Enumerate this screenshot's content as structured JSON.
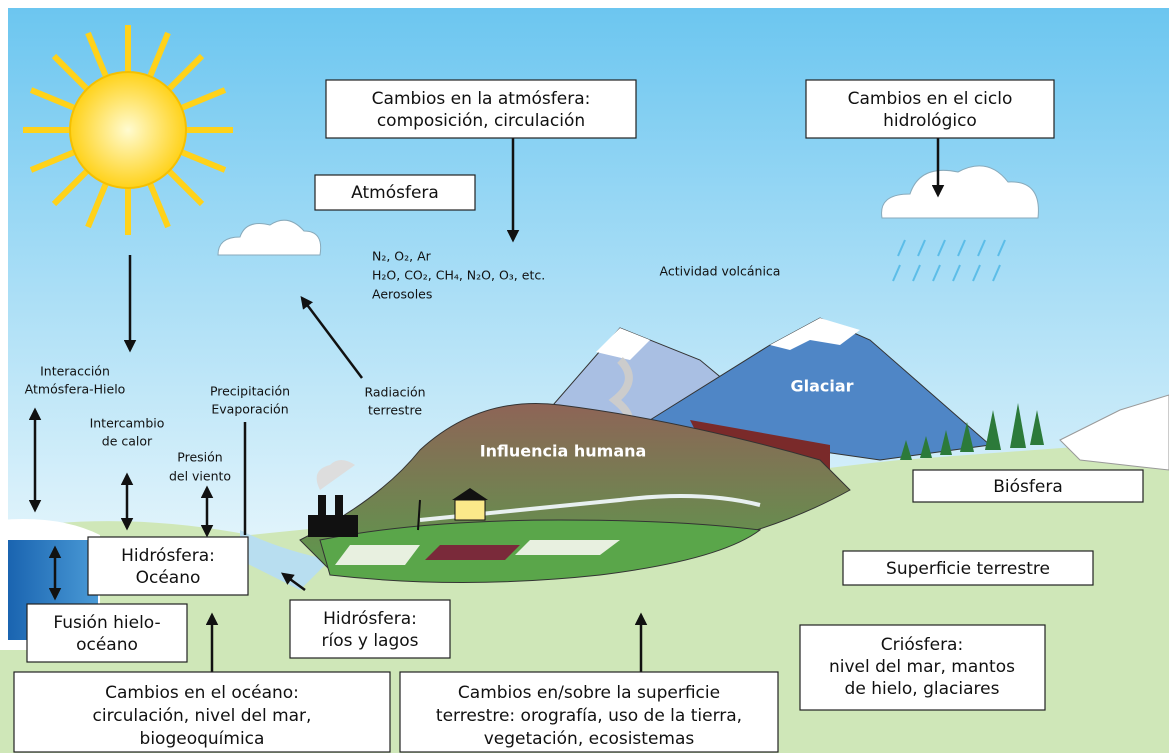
{
  "boxes": [
    {
      "lines": [
        "Cambios en la atmósfera:",
        "composición, circulación"
      ]
    },
    {
      "lines": [
        "Cambios en el ciclo",
        "hidrológico"
      ]
    },
    {
      "lines": [
        "Atmósfera"
      ]
    },
    {
      "lines": [
        "Biósfera"
      ]
    },
    {
      "lines": [
        "Superficie terrestre"
      ]
    },
    {
      "lines": [
        "Hidrósfera:",
        "Océano"
      ]
    },
    {
      "lines": [
        "Fusión hielo-",
        "océano"
      ]
    },
    {
      "lines": [
        "Hidrósfera:",
        "ríos y lagos"
      ]
    },
    {
      "lines": [
        "Criósfera:",
        "nivel del mar, mantos",
        "de hielo, glaciares"
      ]
    },
    {
      "lines": [
        "Cambios en el océano:",
        "circulación, nivel del mar,",
        "biogeoquímica"
      ]
    },
    {
      "lines": [
        "Cambios en/sobre la superficie",
        "terrestre: orografía, uso de la tierra,",
        "vegetación, ecosistemas"
      ]
    }
  ],
  "labels": [
    {
      "lines": [
        "N₂, O₂, Ar",
        "H₂O, CO₂, CH₄, N₂O, O₃, etc.",
        "Aerosoles"
      ]
    },
    {
      "lines": [
        "Actividad volcánica"
      ]
    },
    {
      "lines": [
        "Radiación",
        "terrestre"
      ]
    },
    {
      "lines": [
        "Precipitación",
        "Evaporación"
      ]
    },
    {
      "lines": [
        "Interacción",
        "Atmósfera-Hielo"
      ]
    },
    {
      "lines": [
        "Intercambio",
        "de calor"
      ]
    },
    {
      "lines": [
        "Presión",
        "del viento"
      ]
    },
    {
      "lines": [
        "Influencia humana"
      ]
    },
    {
      "lines": [
        "Glaciar"
      ]
    }
  ]
}
